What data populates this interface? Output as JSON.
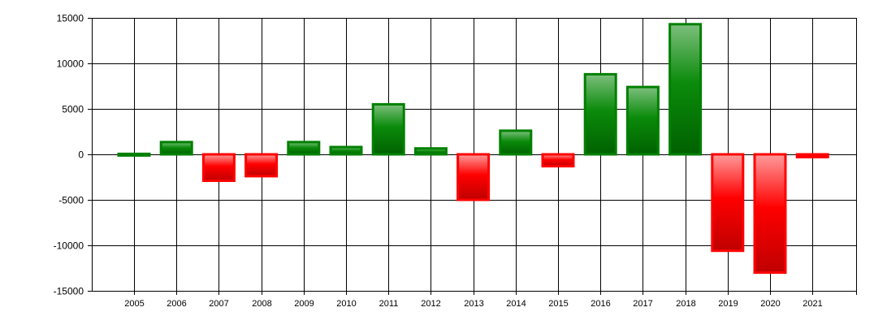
{
  "chart_data": {
    "type": "bar",
    "title": "",
    "xlabel": "",
    "ylabel": "",
    "categories": [
      "2005",
      "2006",
      "2007",
      "2008",
      "2009",
      "2010",
      "2011",
      "2012",
      "2013",
      "2014",
      "2015",
      "2016",
      "2017",
      "2018",
      "2019",
      "2020",
      "2021"
    ],
    "values": [
      50,
      1350,
      -2900,
      -2400,
      1350,
      800,
      5500,
      650,
      -5000,
      2600,
      -1300,
      8800,
      7400,
      14300,
      -10600,
      -13000,
      -300
    ],
    "ylim": [
      -15000,
      15000
    ],
    "yticks": [
      15000,
      10000,
      5000,
      0,
      -5000,
      -10000,
      -15000
    ],
    "ytick_labels": [
      "15000",
      "10000",
      "5000",
      "0",
      "-5000",
      "-10000",
      "-15000"
    ],
    "grid": true,
    "colors": {
      "positive_border": "#008000",
      "positive_fill_light": "#7dbf7d",
      "positive_fill_mid": "#0b8b0b",
      "positive_fill_dark": "#006100",
      "negative_border": "#ff0000",
      "negative_fill_light": "#ff9b9b",
      "negative_fill_mid": "#ff0000",
      "negative_fill_dark": "#bf0000",
      "grid": "#000000",
      "axis": "#000000"
    }
  }
}
